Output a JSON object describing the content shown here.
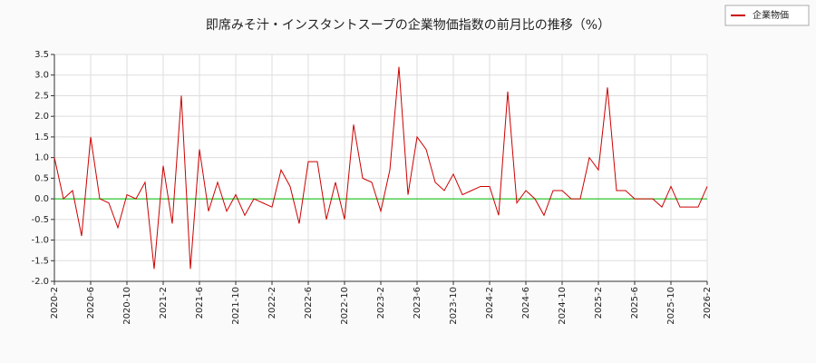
{
  "chart_data": {
    "type": "line",
    "title": "即席みそ汁・インスタントスープの企業物価指数の前月比の推移（%）",
    "categories": [
      "2020-2",
      null,
      null,
      null,
      "2020-6",
      null,
      null,
      null,
      "2020-10",
      null,
      null,
      null,
      "2021-2",
      null,
      null,
      null,
      "2021-6",
      null,
      null,
      null,
      "2021-10",
      null,
      null,
      null,
      "2022-2",
      null,
      null,
      null,
      "2022-6",
      null,
      null,
      null,
      "2022-10",
      null,
      null,
      null,
      "2023-2",
      null,
      null,
      null,
      "2023-6",
      null,
      null,
      null,
      "2023-10",
      null,
      null,
      null,
      "2024-2",
      null,
      null,
      null,
      "2024-6",
      null,
      null,
      null,
      "2024-10",
      null,
      null,
      null,
      "2025-2",
      null,
      null,
      null,
      "2025-6",
      null,
      null,
      null,
      "2025-10",
      null,
      null,
      null,
      "2026-2"
    ],
    "series": [
      {
        "name": "企業物価",
        "color": "#cc0000",
        "values": [
          1.0,
          0.0,
          0.2,
          -0.9,
          1.5,
          0.0,
          -0.1,
          -0.7,
          0.1,
          0.0,
          0.4,
          -1.7,
          0.8,
          -0.6,
          2.5,
          -1.7,
          1.2,
          -0.3,
          0.4,
          -0.3,
          0.1,
          -0.4,
          0.0,
          -0.1,
          -0.2,
          0.7,
          0.3,
          -0.6,
          0.9,
          0.9,
          -0.5,
          0.4,
          -0.5,
          1.8,
          0.5,
          0.4,
          -0.3,
          0.7,
          3.2,
          0.1,
          1.5,
          1.2,
          0.4,
          0.2,
          0.6,
          0.1,
          0.2,
          0.3,
          0.3,
          -0.4,
          2.6,
          -0.1,
          0.2,
          0.0,
          -0.4,
          0.2,
          0.2,
          0.0,
          0.0,
          1.0,
          0.7,
          2.7,
          0.2,
          0.2,
          0.0,
          0.0,
          0.0,
          -0.2,
          0.3,
          -0.2,
          -0.2,
          -0.2,
          0.3
        ]
      }
    ],
    "ylim": [
      -2.0,
      3.5
    ],
    "yticks": [
      3.5,
      {
        "value": 3.0,
        "label": "3.0"
      },
      2.5,
      {
        "value": 2.0,
        "label": "2.0"
      },
      1.5,
      {
        "value": 1.0,
        "label": "1.0"
      },
      0.5,
      {
        "value": 0.0,
        "label": "0.0"
      },
      -0.5,
      {
        "value": -1.0,
        "label": "-1.0"
      },
      -1.5,
      {
        "value": -2.0,
        "label": "-2.0"
      }
    ],
    "grid": true,
    "baseline": {
      "value": 0,
      "color": "#00bb00"
    },
    "legend": "top-right"
  }
}
